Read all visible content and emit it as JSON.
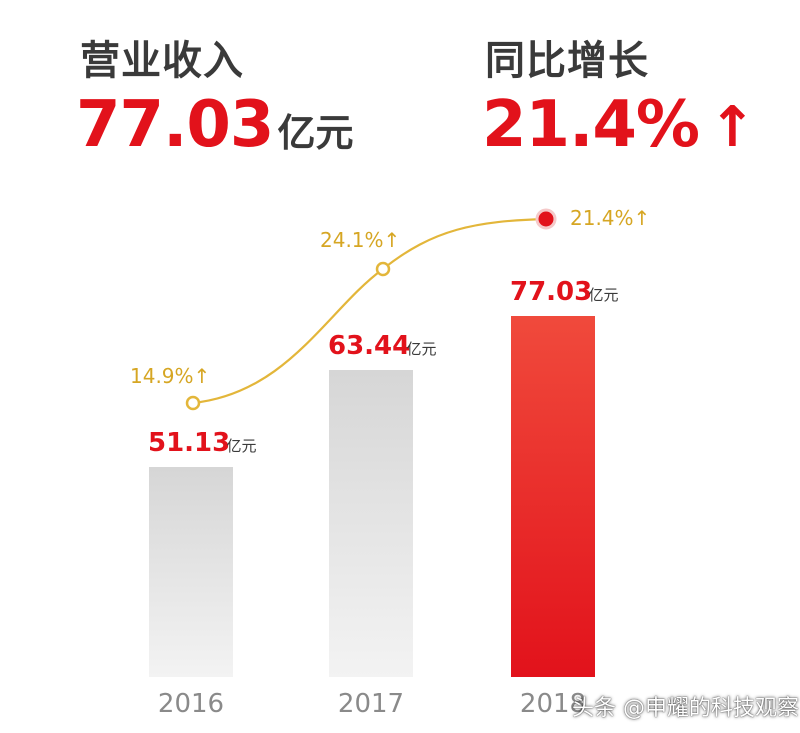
{
  "header": {
    "revenue_label": "营业收入",
    "revenue_value": "77.03",
    "revenue_unit": "亿元",
    "growth_label": "同比增长",
    "growth_value": "21.4%",
    "growth_arrow": "↑"
  },
  "colors": {
    "accent_red": "#e2121b",
    "text_dark": "#3a3a3a",
    "growth_line": "#e3b63a",
    "growth_text": "#d6a623",
    "bar_grey_top": "#d6d6d6",
    "bar_grey_bottom": "#f3f3f3",
    "bar_red_top": "#f04a3c",
    "bar_red_bottom": "#e2121b",
    "axis_text": "#8a8a8a"
  },
  "chart_data": {
    "type": "bar",
    "categories": [
      "2016",
      "2017",
      "2018"
    ],
    "values": [
      51.13,
      63.44,
      77.03
    ],
    "value_labels": [
      "51.13",
      "63.44",
      "77.03"
    ],
    "value_unit": "亿元",
    "highlight_index": 2,
    "growth_line": {
      "type": "line",
      "values": [
        14.9,
        24.1,
        21.4
      ],
      "labels": [
        "14.9%↑",
        "24.1%↑",
        "21.4%↑"
      ]
    },
    "title": "",
    "xlabel": "",
    "ylabel": "",
    "grid": false
  },
  "watermark": "头条 @申耀的科技观察"
}
